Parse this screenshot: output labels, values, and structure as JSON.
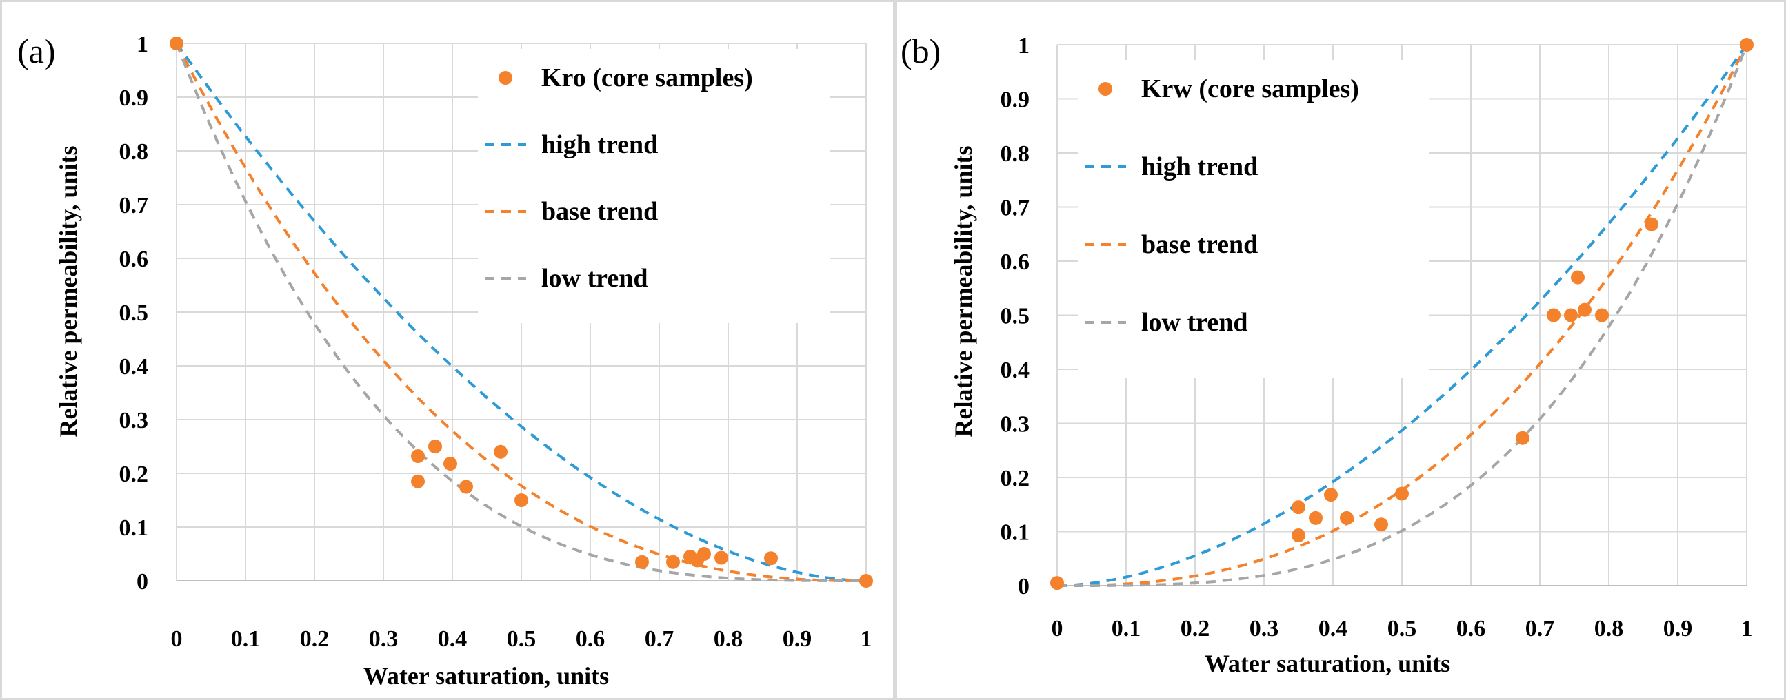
{
  "chart_data": [
    {
      "type": "scatter",
      "panel_label": "(a)",
      "xlabel": "Water saturation, units",
      "ylabel": "Relative permeability, units",
      "xlim": [
        0,
        1
      ],
      "ylim": [
        0,
        1
      ],
      "xticks": [
        "0",
        "0.1",
        "0.2",
        "0.3",
        "0.4",
        "0.5",
        "0.6",
        "0.7",
        "0.8",
        "0.9",
        "1"
      ],
      "yticks": [
        "0",
        "0.1",
        "0.2",
        "0.3",
        "0.4",
        "0.5",
        "0.6",
        "0.7",
        "0.8",
        "0.9",
        "1"
      ],
      "grid": true,
      "legend_position": "top-right",
      "series": [
        {
          "name": "Kro (core samples)",
          "kind": "markers",
          "color": "#f4812c",
          "points": [
            [
              0,
              1
            ],
            [
              0.35,
              0.232
            ],
            [
              0.35,
              0.185
            ],
            [
              0.375,
              0.25
            ],
            [
              0.397,
              0.218
            ],
            [
              0.42,
              0.175
            ],
            [
              0.47,
              0.24
            ],
            [
              0.5,
              0.15
            ],
            [
              0.675,
              0.035
            ],
            [
              0.72,
              0.035
            ],
            [
              0.745,
              0.045
            ],
            [
              0.755,
              0.038
            ],
            [
              0.765,
              0.05
            ],
            [
              0.79,
              0.043
            ],
            [
              0.862,
              0.042
            ],
            [
              1,
              0
            ]
          ]
        },
        {
          "name": "high trend",
          "kind": "dashed-curve",
          "color": "#2e9bd6",
          "shape": "(1-x)^1.8"
        },
        {
          "name": "base trend",
          "kind": "dashed-curve",
          "color": "#f4812c",
          "shape": "(1-x)^2.5"
        },
        {
          "name": "low trend",
          "kind": "dashed-curve",
          "color": "#a6a6a6",
          "shape": "(1-x)^3.3"
        }
      ]
    },
    {
      "type": "scatter",
      "panel_label": "(b)",
      "xlabel": "Water saturation, units",
      "ylabel": "Relative permeability, units",
      "xlim": [
        0,
        1
      ],
      "ylim": [
        0,
        1
      ],
      "xticks": [
        "0",
        "0.1",
        "0.2",
        "0.3",
        "0.4",
        "0.5",
        "0.6",
        "0.7",
        "0.8",
        "0.9",
        "1"
      ],
      "yticks": [
        "0",
        "0.1",
        "0.2",
        "0.3",
        "0.4",
        "0.5",
        "0.6",
        "0.7",
        "0.8",
        "0.9",
        "1"
      ],
      "grid": true,
      "legend_position": "top-left",
      "series": [
        {
          "name": "Krw (core samples)",
          "kind": "markers",
          "color": "#f4812c",
          "points": [
            [
              0,
              0.005
            ],
            [
              0.35,
              0.145
            ],
            [
              0.35,
              0.093
            ],
            [
              0.375,
              0.125
            ],
            [
              0.397,
              0.168
            ],
            [
              0.42,
              0.125
            ],
            [
              0.47,
              0.113
            ],
            [
              0.5,
              0.17
            ],
            [
              0.675,
              0.273
            ],
            [
              0.72,
              0.5
            ],
            [
              0.745,
              0.5
            ],
            [
              0.755,
              0.57
            ],
            [
              0.765,
              0.51
            ],
            [
              0.79,
              0.5
            ],
            [
              0.862,
              0.668
            ],
            [
              1,
              1
            ]
          ]
        },
        {
          "name": "high trend",
          "kind": "dashed-curve",
          "color": "#2e9bd6",
          "shape": "x^1.8"
        },
        {
          "name": "base trend",
          "kind": "dashed-curve",
          "color": "#f4812c",
          "shape": "x^2.5"
        },
        {
          "name": "low trend",
          "kind": "dashed-curve",
          "color": "#a6a6a6",
          "shape": "x^3.3"
        }
      ]
    }
  ]
}
